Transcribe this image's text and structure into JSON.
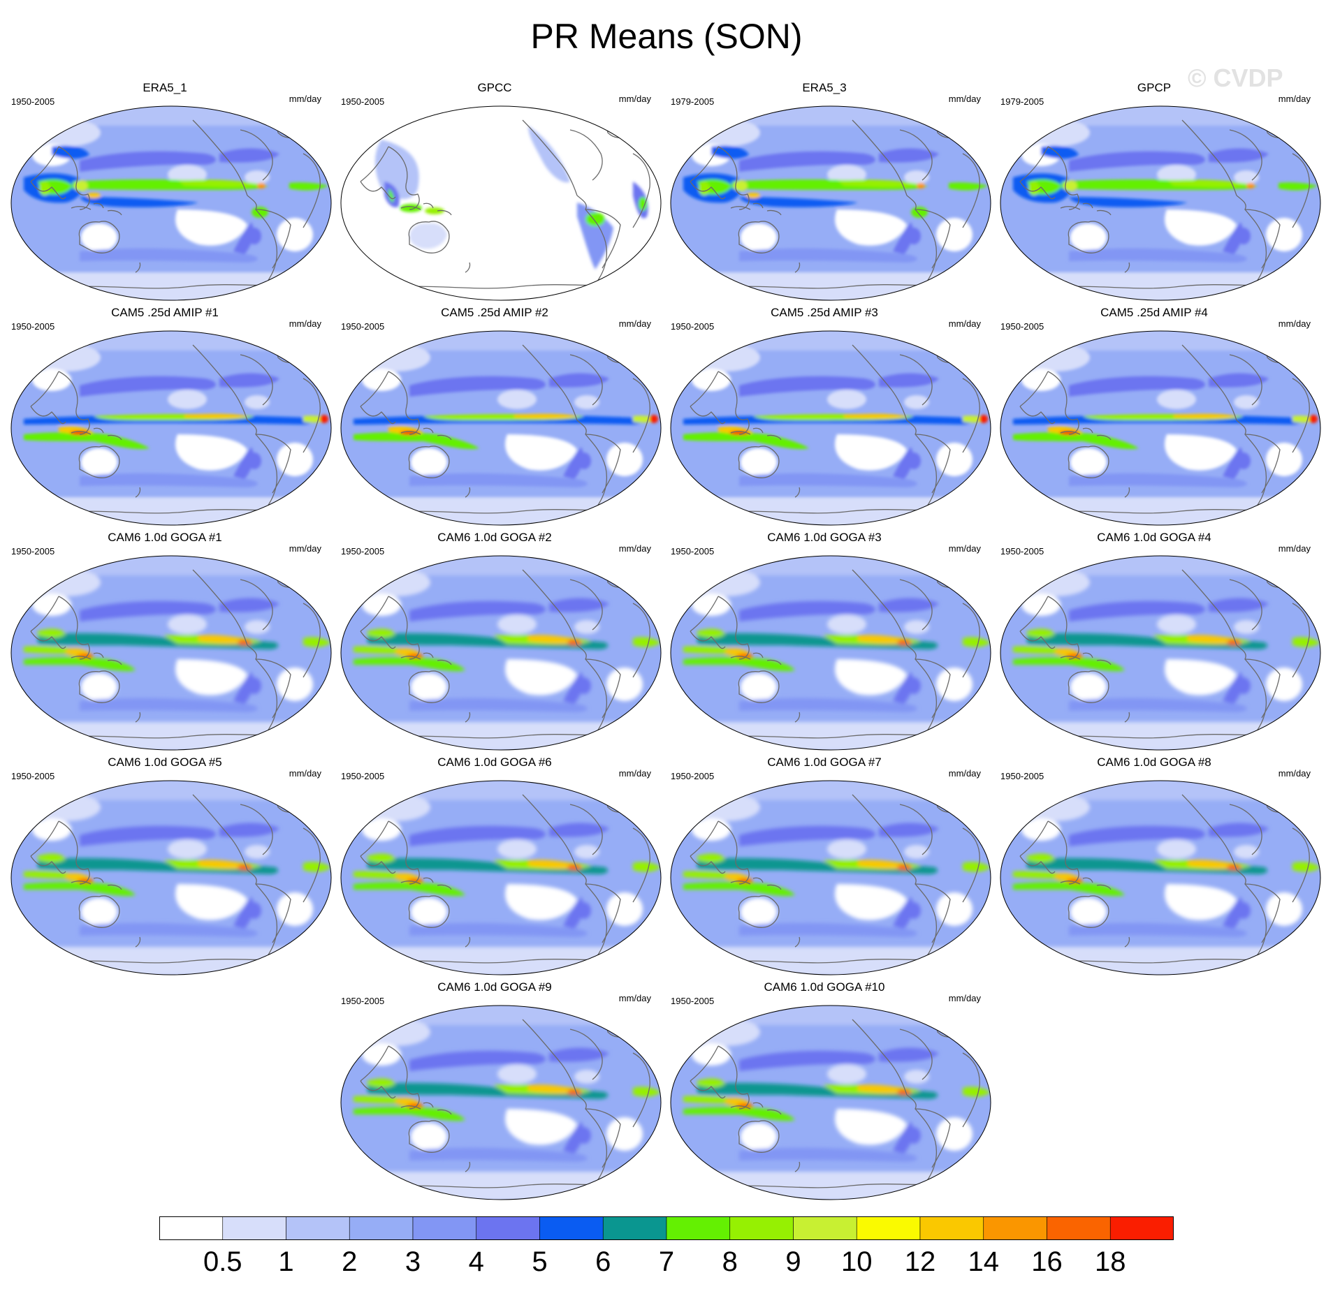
{
  "figure": {
    "title": "PR Means (SON)",
    "watermark": "© CVDP"
  },
  "panels": [
    {
      "title": "ERA5_1",
      "period": "1950-2005",
      "units": "mm/day",
      "style": "obs"
    },
    {
      "title": "GPCC",
      "period": "1950-2005",
      "units": "mm/day",
      "style": "land"
    },
    {
      "title": "ERA5_3",
      "period": "1979-2005",
      "units": "mm/day",
      "style": "obs"
    },
    {
      "title": "GPCP",
      "period": "1979-2005",
      "units": "mm/day",
      "style": "obs_smooth"
    },
    {
      "title": "CAM5 .25d AMIP #1",
      "period": "1950-2005",
      "units": "mm/day",
      "style": "cam5"
    },
    {
      "title": "CAM5 .25d AMIP #2",
      "period": "1950-2005",
      "units": "mm/day",
      "style": "cam5"
    },
    {
      "title": "CAM5 .25d AMIP #3",
      "period": "1950-2005",
      "units": "mm/day",
      "style": "cam5"
    },
    {
      "title": "CAM5 .25d AMIP #4",
      "period": "1950-2005",
      "units": "mm/day",
      "style": "cam5"
    },
    {
      "title": "CAM6 1.0d GOGA #1",
      "period": "1950-2005",
      "units": "mm/day",
      "style": "cam6"
    },
    {
      "title": "CAM6 1.0d GOGA #2",
      "period": "1950-2005",
      "units": "mm/day",
      "style": "cam6"
    },
    {
      "title": "CAM6 1.0d GOGA #3",
      "period": "1950-2005",
      "units": "mm/day",
      "style": "cam6"
    },
    {
      "title": "CAM6 1.0d GOGA #4",
      "period": "1950-2005",
      "units": "mm/day",
      "style": "cam6"
    },
    {
      "title": "CAM6 1.0d GOGA #5",
      "period": "1950-2005",
      "units": "mm/day",
      "style": "cam6"
    },
    {
      "title": "CAM6 1.0d GOGA #6",
      "period": "1950-2005",
      "units": "mm/day",
      "style": "cam6"
    },
    {
      "title": "CAM6 1.0d GOGA #7",
      "period": "1950-2005",
      "units": "mm/day",
      "style": "cam6"
    },
    {
      "title": "CAM6 1.0d GOGA #8",
      "period": "1950-2005",
      "units": "mm/day",
      "style": "cam6"
    },
    {
      "title": "CAM6 1.0d GOGA #9",
      "period": "1950-2005",
      "units": "mm/day",
      "style": "cam6"
    },
    {
      "title": "CAM6 1.0d GOGA #10",
      "period": "1950-2005",
      "units": "mm/day",
      "style": "cam6"
    }
  ],
  "colorbar": {
    "labels": [
      "0.5",
      "1",
      "2",
      "3",
      "4",
      "5",
      "6",
      "7",
      "8",
      "9",
      "10",
      "12",
      "14",
      "16",
      "18"
    ],
    "colors": [
      "#ffffff",
      "#d7defa",
      "#b4c3f8",
      "#96adf6",
      "#8296f4",
      "#6c74f0",
      "#0a5cf2",
      "#0a9690",
      "#64f002",
      "#96f002",
      "#c8f032",
      "#fafa00",
      "#fac800",
      "#fa9600",
      "#fa6400",
      "#fa1e00"
    ]
  }
}
